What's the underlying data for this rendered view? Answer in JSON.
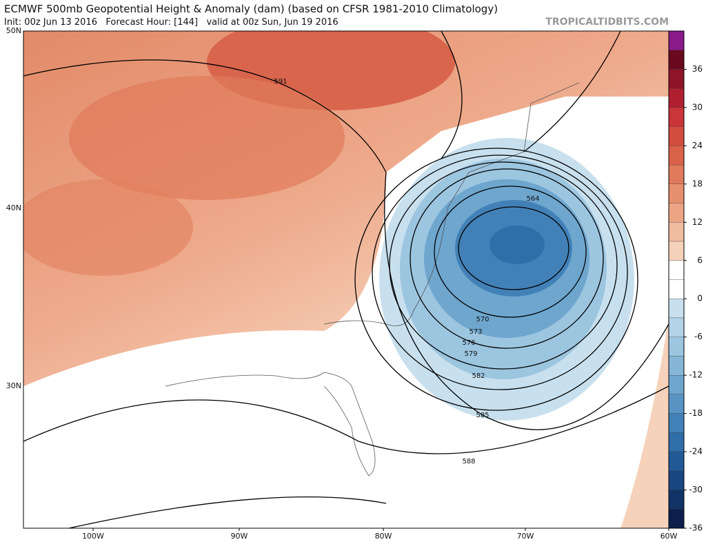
{
  "header": {
    "title": "ECMWF 500mb Geopotential Height & Anomaly (dam) (based on CFSR 1981-2010 Climatology)",
    "subtitle": "Init: 00z Jun 13 2016   Forecast Hour: [144]   valid at 00z Sun, Jun 19 2016",
    "watermark": "TROPICALTIDBITS.COM"
  },
  "map": {
    "lat_labels": [
      "50N",
      "40N",
      "30N"
    ],
    "lon_labels": [
      "100W",
      "90W",
      "80W",
      "70W",
      "60W"
    ],
    "contour_labels": [
      591,
      564,
      570,
      573,
      576,
      579,
      582,
      585,
      588
    ]
  },
  "colorbar": {
    "ticks": [
      36,
      30,
      24,
      18,
      12,
      6,
      0,
      -6,
      -12,
      -18,
      -24,
      -30,
      -36
    ],
    "colors": [
      "#8a1a8a",
      "#6b0a1f",
      "#8e1428",
      "#b01f30",
      "#c9353a",
      "#d24d3f",
      "#da6249",
      "#e07a5a",
      "#e6906e",
      "#eba585",
      "#f0bc9f",
      "#f6d2bb",
      "#ffffff",
      "#ffffff",
      "#c8e0ee",
      "#b3d3e8",
      "#9cc5e0",
      "#85b6d8",
      "#6ea6ce",
      "#5894c3",
      "#4281b8",
      "#306ea9",
      "#225a97",
      "#184680",
      "#113366",
      "#0c1f4c"
    ]
  }
}
